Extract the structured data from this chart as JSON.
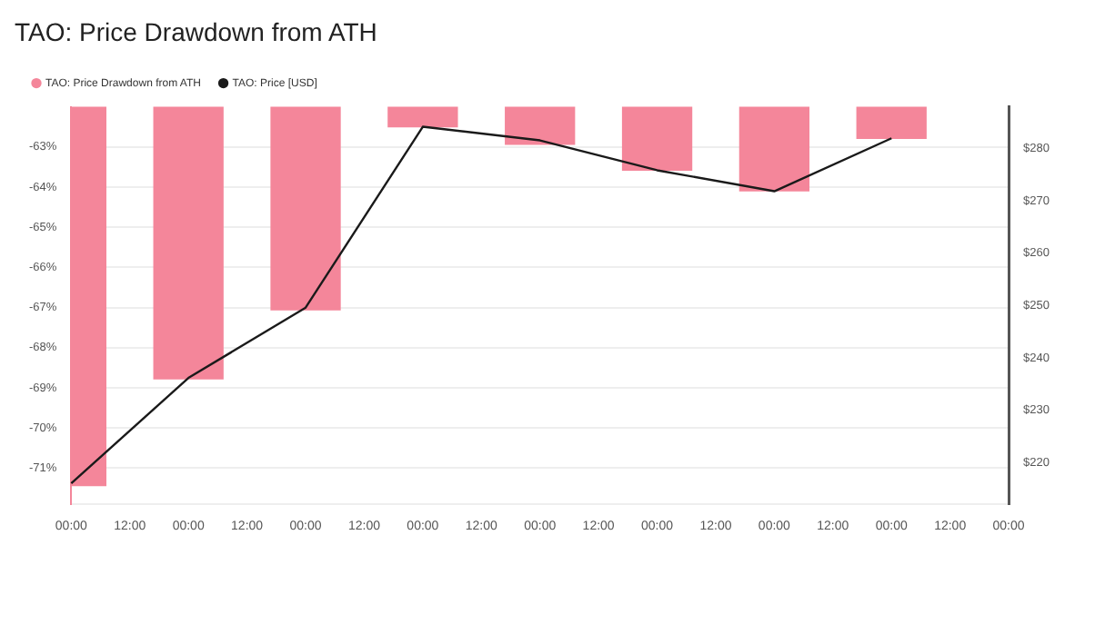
{
  "chart_data": {
    "type": "bar",
    "title": "TAO: Price Drawdown from ATH",
    "categories": [
      "00:00",
      "12:00",
      "00:00",
      "12:00",
      "00:00",
      "12:00",
      "00:00",
      "12:00",
      "00:00",
      "12:00",
      "00:00",
      "12:00",
      "00:00",
      "12:00",
      "00:00",
      "12:00",
      "00:00"
    ],
    "series": [
      {
        "name": "TAO: Price Drawdown from ATH",
        "color": "#f4869a",
        "values": [
          -71.45,
          null,
          -68.79,
          null,
          -67.07,
          null,
          -62.51,
          null,
          -62.95,
          null,
          -63.59,
          null,
          -64.11,
          null,
          -62.8,
          null,
          null
        ]
      },
      {
        "name": "TAO: Price [USD]",
        "type": "line",
        "axis": "y2",
        "color": "#1a1a1a",
        "values": [
          216.1,
          null,
          236.2,
          null,
          249.6,
          null,
          284.1,
          null,
          281.5,
          null,
          275.8,
          null,
          271.8,
          null,
          281.9,
          null,
          null
        ]
      }
    ],
    "ylim": [
      -71.9,
      -62
    ],
    "yticks": [
      {
        "value": -63,
        "label": "-63%"
      },
      {
        "value": -64,
        "label": "-64%"
      },
      {
        "value": -65,
        "label": "-65%"
      },
      {
        "value": -66,
        "label": "-66%"
      },
      {
        "value": -67,
        "label": "-67%"
      },
      {
        "value": -68,
        "label": "-68%"
      },
      {
        "value": -69,
        "label": "-69%"
      },
      {
        "value": -70,
        "label": "-70%"
      },
      {
        "value": -71,
        "label": "-71%"
      }
    ],
    "y2lim": [
      212.1,
      287.9
    ],
    "y2ticks": [
      {
        "value": 220,
        "label": "$220"
      },
      {
        "value": 230,
        "label": "$230"
      },
      {
        "value": 240,
        "label": "$240"
      },
      {
        "value": 250,
        "label": "$250"
      },
      {
        "value": 260,
        "label": "$260"
      },
      {
        "value": 270,
        "label": "$270"
      },
      {
        "value": 280,
        "label": "$280"
      }
    ],
    "grid": "y",
    "legend": "top left",
    "marker": "none",
    "line_style": "solid"
  }
}
